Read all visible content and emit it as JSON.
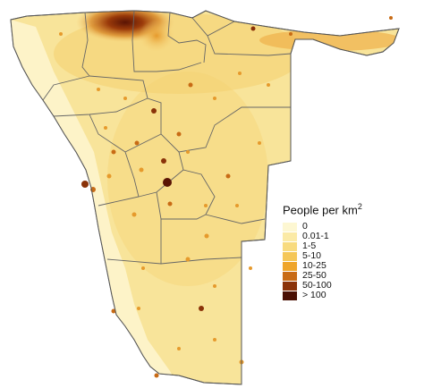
{
  "legend": {
    "title_main": "People per km",
    "title_sup": "2",
    "items": [
      {
        "label": "0",
        "color": "#fdf7d2"
      },
      {
        "label": "0.01-1",
        "color": "#fbeaa6"
      },
      {
        "label": "1-5",
        "color": "#f8db7f"
      },
      {
        "label": "5-10",
        "color": "#f5c758"
      },
      {
        "label": "10-25",
        "color": "#efa52a"
      },
      {
        "label": "25-50",
        "color": "#c86b15"
      },
      {
        "label": "50-100",
        "color": "#8a3209"
      },
      {
        "label": "> 100",
        "color": "#4a1004"
      }
    ]
  },
  "colors": {
    "outline": "#555555",
    "region_border": "#666666",
    "base_fill": "#f8e49a",
    "coast_fill": "#fdf5cf"
  }
}
